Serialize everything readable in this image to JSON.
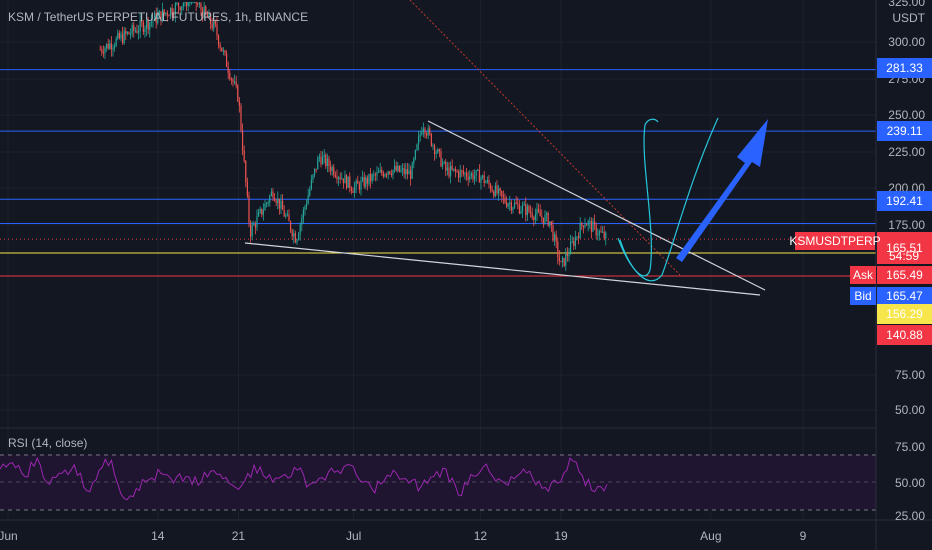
{
  "header": {
    "title": "KSM / TetherUS PERPETUAL FUTURES, 1h, BINANCE",
    "currency": "USDT"
  },
  "rsi": {
    "title": "RSI (14, close)",
    "ticks": [
      "75.00",
      "50.00",
      "25.00"
    ]
  },
  "colors": {
    "background": "#131722",
    "grid": "#1e222d",
    "up": "#26a69a",
    "down": "#ef5350",
    "blue_line": "#2962ff",
    "yellow_line": "#f7e64b",
    "red_line": "#f23645",
    "rsi_line": "#9c27b0",
    "arrow": "#2962ff",
    "trend_line": "#d1d4dc",
    "cyan_line": "#26c6da"
  },
  "price_axis_ticks": [
    "325.00",
    "300.00",
    "275.00",
    "250.00",
    "225.00",
    "200.00",
    "175.00",
    "75.00",
    "50.00"
  ],
  "time_axis_ticks": [
    "Jun",
    "14",
    "21",
    "Jul",
    "12",
    "19",
    "Aug",
    "9"
  ],
  "tags": {
    "ticker": "KSMUSDTPERP",
    "last": "165.51",
    "countdown": "54:59",
    "ask_label": "Ask",
    "ask": "165.49",
    "bid_label": "Bid",
    "bid": "165.47",
    "level_281": "281.33",
    "level_239": "239.11",
    "level_192": "192.41",
    "level_156": "156.29",
    "level_140": "140.88"
  },
  "chart_data": {
    "type": "candlestick",
    "symbol": "KSM / TetherUS PERPETUAL FUTURES",
    "interval": "1h",
    "exchange": "BINANCE",
    "horizontal_levels": [
      {
        "price": 281.33,
        "color": "blue"
      },
      {
        "price": 239.11,
        "color": "blue"
      },
      {
        "price": 192.41,
        "color": "blue"
      },
      {
        "price": 176,
        "color": "blue"
      },
      {
        "price": 156.29,
        "color": "yellow"
      },
      {
        "price": 140.88,
        "color": "red"
      }
    ],
    "price_path": [
      {
        "date": "2021-06-09",
        "price": 295
      },
      {
        "date": "2021-06-17",
        "price": 328
      },
      {
        "date": "2021-06-19",
        "price": 308
      },
      {
        "date": "2021-06-21",
        "price": 262
      },
      {
        "date": "2021-06-22",
        "price": 170
      },
      {
        "date": "2021-06-24",
        "price": 198
      },
      {
        "date": "2021-06-26",
        "price": 166
      },
      {
        "date": "2021-06-28",
        "price": 222
      },
      {
        "date": "2021-07-01",
        "price": 200
      },
      {
        "date": "2021-07-04",
        "price": 213
      },
      {
        "date": "2021-07-06",
        "price": 210
      },
      {
        "date": "2021-07-07",
        "price": 245
      },
      {
        "date": "2021-07-09",
        "price": 212
      },
      {
        "date": "2021-07-12",
        "price": 208
      },
      {
        "date": "2021-07-14",
        "price": 192
      },
      {
        "date": "2021-07-16",
        "price": 185
      },
      {
        "date": "2021-07-18",
        "price": 178
      },
      {
        "date": "2021-07-19",
        "price": 147
      },
      {
        "date": "2021-07-21",
        "price": 178
      },
      {
        "date": "2021-07-23",
        "price": 165.51
      }
    ],
    "rsi_values": [
      62,
      68,
      55,
      72,
      48,
      58,
      66,
      42,
      61,
      70,
      35,
      44,
      52,
      58,
      49,
      55,
      47,
      60,
      53,
      45,
      58,
      64,
      50,
      57,
      61,
      48,
      54,
      59,
      66,
      52,
      44,
      51,
      58,
      49,
      46,
      55,
      62,
      38,
      57,
      64,
      51,
      47,
      58,
      53,
      45,
      49,
      72,
      56,
      41,
      48
    ]
  }
}
